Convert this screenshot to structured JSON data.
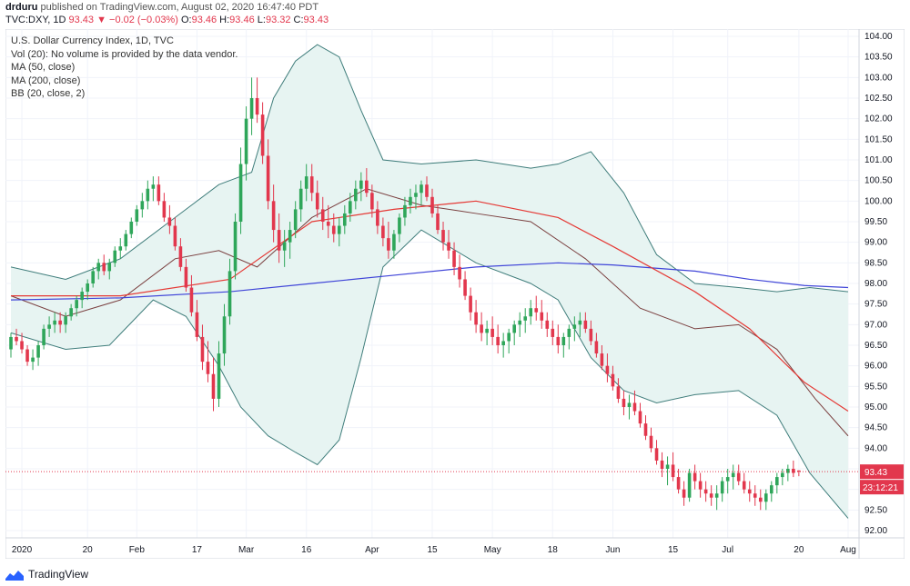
{
  "header": {
    "author": "drduru",
    "published_text": "published on TradingView.com, August 02, 2020 16:47:40 PDT",
    "symbol": "TVC:DXY, 1D",
    "last_price": "93.43",
    "change_arrow": "▼",
    "change": "−0.02 (−0.03%)",
    "ohlc": [
      {
        "label": "O:",
        "value": "93.46"
      },
      {
        "label": "H:",
        "value": "93.46"
      },
      {
        "label": "L:",
        "value": "93.32"
      },
      {
        "label": "C:",
        "value": "93.43"
      }
    ]
  },
  "legend": [
    "U.S. Dollar Currency Index, 1D, TVC",
    "Vol (20): No volume is provided by the data vendor.",
    "MA (50, close)",
    "MA (200, close)",
    "BB (20, close, 2)"
  ],
  "footer": {
    "brand": "TradingView"
  },
  "colors": {
    "up": "#26a69a",
    "up_candle": "#2fa65a",
    "down": "#e2374d",
    "ma50": "#e53935",
    "ma200": "#3f44d8",
    "bb_basis": "#7a3f3f",
    "bb_band": "#3f7d7b",
    "bb_fill": "#e7f4f2",
    "grid": "#f0f3fa"
  },
  "chart_data": {
    "type": "candlestick",
    "y_axis": {
      "min": 92.0,
      "max": 104.0,
      "ticks": [
        "104.00",
        "103.50",
        "103.00",
        "102.50",
        "102.00",
        "101.50",
        "101.00",
        "100.50",
        "100.00",
        "99.50",
        "99.00",
        "98.50",
        "98.00",
        "97.50",
        "97.00",
        "96.50",
        "96.00",
        "95.50",
        "95.00",
        "94.50",
        "94.00",
        "93.50",
        "93.00",
        "92.50",
        "92.00"
      ]
    },
    "x_axis": {
      "labels": [
        {
          "text": "2020",
          "day": 2
        },
        {
          "text": "20",
          "day": 14
        },
        {
          "text": "Feb",
          "day": 23
        },
        {
          "text": "17",
          "day": 34
        },
        {
          "text": "Mar",
          "day": 43
        },
        {
          "text": "16",
          "day": 54
        },
        {
          "text": "Apr",
          "day": 66
        },
        {
          "text": "15",
          "day": 77
        },
        {
          "text": "May",
          "day": 88
        },
        {
          "text": "18",
          "day": 99
        },
        {
          "text": "Jun",
          "day": 110
        },
        {
          "text": "15",
          "day": 121
        },
        {
          "text": "Jul",
          "day": 131
        },
        {
          "text": "20",
          "day": 144
        },
        {
          "text": "Aug",
          "day": 153
        }
      ],
      "day_min": -1,
      "day_max": 155
    },
    "price_label": {
      "value": 93.43,
      "text": "93.43"
    },
    "timer_label": {
      "value": 93.15,
      "text": "23:12:21"
    },
    "candles": [
      [
        96.4,
        96.8,
        96.2,
        96.7
      ],
      [
        96.7,
        96.9,
        96.5,
        96.6
      ],
      [
        96.6,
        96.8,
        96.3,
        96.4
      ],
      [
        96.4,
        96.5,
        96.0,
        96.1
      ],
      [
        96.1,
        96.4,
        95.9,
        96.2
      ],
      [
        96.2,
        96.6,
        96.0,
        96.5
      ],
      [
        96.5,
        97.0,
        96.4,
        96.9
      ],
      [
        96.9,
        97.2,
        96.7,
        97.0
      ],
      [
        97.0,
        97.3,
        96.8,
        97.1
      ],
      [
        97.1,
        97.3,
        96.8,
        97.0
      ],
      [
        97.0,
        97.3,
        96.8,
        97.2
      ],
      [
        97.2,
        97.5,
        97.1,
        97.4
      ],
      [
        97.4,
        97.7,
        97.2,
        97.6
      ],
      [
        97.6,
        97.9,
        97.4,
        97.8
      ],
      [
        97.8,
        98.1,
        97.6,
        98.0
      ],
      [
        98.0,
        98.4,
        97.9,
        98.3
      ],
      [
        98.3,
        98.6,
        98.1,
        98.5
      ],
      [
        98.5,
        98.7,
        98.2,
        98.3
      ],
      [
        98.3,
        98.6,
        98.1,
        98.5
      ],
      [
        98.5,
        98.9,
        98.4,
        98.8
      ],
      [
        98.8,
        99.1,
        98.6,
        98.9
      ],
      [
        98.9,
        99.3,
        98.8,
        99.2
      ],
      [
        99.2,
        99.6,
        99.1,
        99.5
      ],
      [
        99.5,
        99.9,
        99.4,
        99.8
      ],
      [
        99.8,
        100.2,
        99.6,
        100.0
      ],
      [
        100.0,
        100.5,
        99.8,
        100.3
      ],
      [
        100.3,
        100.6,
        100.0,
        100.4
      ],
      [
        100.4,
        100.6,
        99.9,
        100.0
      ],
      [
        100.0,
        100.2,
        99.5,
        99.6
      ],
      [
        99.6,
        99.9,
        99.2,
        99.4
      ],
      [
        99.4,
        99.6,
        98.8,
        98.9
      ],
      [
        98.9,
        99.1,
        98.3,
        98.4
      ],
      [
        98.4,
        98.6,
        97.8,
        97.9
      ],
      [
        97.9,
        98.2,
        97.2,
        97.3
      ],
      [
        97.3,
        97.6,
        96.6,
        96.7
      ],
      [
        96.7,
        97.0,
        95.9,
        96.1
      ],
      [
        96.1,
        96.6,
        95.6,
        95.8
      ],
      [
        95.8,
        96.2,
        94.9,
        95.2
      ],
      [
        95.2,
        96.6,
        95.0,
        96.3
      ],
      [
        96.3,
        97.5,
        96.0,
        97.2
      ],
      [
        97.2,
        98.6,
        97.0,
        98.3
      ],
      [
        98.3,
        99.7,
        98.1,
        99.5
      ],
      [
        99.5,
        101.3,
        99.2,
        100.9
      ],
      [
        100.9,
        102.3,
        100.5,
        102.0
      ],
      [
        102.0,
        103.0,
        101.6,
        102.5
      ],
      [
        102.5,
        103.0,
        101.9,
        102.1
      ],
      [
        102.1,
        102.4,
        100.9,
        101.1
      ],
      [
        101.1,
        101.5,
        99.8,
        100.0
      ],
      [
        100.0,
        100.4,
        99.0,
        99.3
      ],
      [
        99.3,
        99.7,
        98.5,
        98.8
      ],
      [
        98.8,
        99.3,
        98.4,
        99.0
      ],
      [
        99.0,
        99.5,
        98.6,
        99.3
      ],
      [
        99.3,
        100.0,
        99.1,
        99.8
      ],
      [
        99.8,
        100.5,
        99.5,
        100.3
      ],
      [
        100.3,
        100.9,
        100.0,
        100.6
      ],
      [
        100.6,
        100.9,
        100.0,
        100.2
      ],
      [
        100.2,
        100.5,
        99.6,
        99.8
      ],
      [
        99.8,
        100.1,
        99.3,
        99.5
      ],
      [
        99.5,
        99.9,
        99.1,
        99.4
      ],
      [
        99.4,
        99.7,
        99.0,
        99.2
      ],
      [
        99.2,
        99.6,
        98.9,
        99.4
      ],
      [
        99.4,
        99.9,
        99.2,
        99.7
      ],
      [
        99.7,
        100.2,
        99.5,
        100.0
      ],
      [
        100.0,
        100.5,
        99.8,
        100.3
      ],
      [
        100.3,
        100.7,
        100.0,
        100.5
      ],
      [
        100.5,
        100.8,
        100.1,
        100.2
      ],
      [
        100.2,
        100.4,
        99.6,
        99.8
      ],
      [
        99.8,
        100.0,
        99.2,
        99.4
      ],
      [
        99.4,
        99.6,
        98.9,
        99.1
      ],
      [
        99.1,
        99.5,
        98.6,
        98.8
      ],
      [
        98.8,
        99.3,
        98.6,
        99.2
      ],
      [
        99.2,
        99.7,
        99.0,
        99.6
      ],
      [
        99.6,
        100.1,
        99.4,
        99.9
      ],
      [
        99.9,
        100.3,
        99.7,
        100.1
      ],
      [
        100.1,
        100.4,
        99.8,
        100.2
      ],
      [
        100.2,
        100.5,
        99.9,
        100.4
      ],
      [
        100.4,
        100.6,
        100.0,
        100.1
      ],
      [
        100.1,
        100.3,
        99.6,
        99.7
      ],
      [
        99.7,
        99.9,
        99.2,
        99.3
      ],
      [
        99.3,
        99.5,
        98.8,
        99.0
      ],
      [
        99.0,
        99.3,
        98.6,
        98.8
      ],
      [
        98.8,
        99.0,
        98.2,
        98.4
      ],
      [
        98.4,
        98.7,
        97.9,
        98.1
      ],
      [
        98.1,
        98.3,
        97.6,
        97.7
      ],
      [
        97.7,
        97.9,
        97.1,
        97.3
      ],
      [
        97.3,
        97.6,
        96.8,
        97.0
      ],
      [
        97.0,
        97.3,
        96.6,
        96.8
      ],
      [
        96.8,
        97.1,
        96.5,
        96.9
      ],
      [
        96.9,
        97.2,
        96.5,
        96.7
      ],
      [
        96.7,
        97.0,
        96.3,
        96.5
      ],
      [
        96.5,
        96.8,
        96.2,
        96.6
      ],
      [
        96.6,
        96.9,
        96.3,
        96.8
      ],
      [
        96.8,
        97.1,
        96.5,
        97.0
      ],
      [
        97.0,
        97.3,
        96.7,
        97.1
      ],
      [
        97.1,
        97.4,
        96.8,
        97.2
      ],
      [
        97.2,
        97.6,
        97.0,
        97.4
      ],
      [
        97.4,
        97.7,
        97.1,
        97.3
      ],
      [
        97.3,
        97.6,
        96.9,
        97.1
      ],
      [
        97.1,
        97.3,
        96.7,
        96.9
      ],
      [
        96.9,
        97.1,
        96.5,
        96.7
      ],
      [
        96.7,
        97.0,
        96.3,
        96.5
      ],
      [
        96.5,
        96.8,
        96.2,
        96.7
      ],
      [
        96.7,
        97.0,
        96.4,
        96.9
      ],
      [
        96.9,
        97.2,
        96.6,
        97.0
      ],
      [
        97.0,
        97.3,
        96.7,
        97.1
      ],
      [
        97.1,
        97.3,
        96.8,
        96.9
      ],
      [
        96.9,
        97.1,
        96.5,
        96.6
      ],
      [
        96.6,
        96.8,
        96.2,
        96.3
      ],
      [
        96.3,
        96.5,
        95.9,
        96.0
      ],
      [
        96.0,
        96.3,
        95.6,
        95.8
      ],
      [
        95.8,
        96.0,
        95.4,
        95.5
      ],
      [
        95.5,
        95.7,
        95.1,
        95.2
      ],
      [
        95.2,
        95.4,
        94.8,
        95.0
      ],
      [
        95.0,
        95.3,
        94.7,
        95.1
      ],
      [
        95.1,
        95.4,
        94.8,
        94.9
      ],
      [
        94.9,
        95.1,
        94.5,
        94.6
      ],
      [
        94.6,
        94.8,
        94.2,
        94.3
      ],
      [
        94.3,
        94.5,
        93.9,
        94.0
      ],
      [
        94.0,
        94.2,
        93.6,
        93.7
      ],
      [
        93.7,
        93.9,
        93.3,
        93.5
      ],
      [
        93.5,
        93.8,
        93.1,
        93.6
      ],
      [
        93.6,
        93.9,
        93.2,
        93.3
      ],
      [
        93.3,
        93.5,
        92.9,
        93.0
      ],
      [
        93.0,
        93.2,
        92.6,
        92.8
      ],
      [
        92.8,
        93.5,
        92.7,
        93.4
      ],
      [
        93.4,
        93.6,
        93.0,
        93.2
      ],
      [
        93.2,
        93.4,
        92.8,
        93.0
      ],
      [
        93.0,
        93.2,
        92.7,
        92.9
      ],
      [
        92.9,
        93.1,
        92.6,
        92.8
      ],
      [
        92.8,
        93.1,
        92.5,
        92.9
      ],
      [
        92.9,
        93.3,
        92.7,
        93.2
      ],
      [
        93.2,
        93.5,
        92.9,
        93.3
      ],
      [
        93.3,
        93.6,
        93.0,
        93.4
      ],
      [
        93.4,
        93.6,
        93.1,
        93.2
      ],
      [
        93.2,
        93.4,
        92.9,
        93.0
      ],
      [
        93.0,
        93.2,
        92.7,
        92.9
      ],
      [
        92.9,
        93.1,
        92.6,
        92.8
      ],
      [
        92.8,
        93.0,
        92.5,
        92.7
      ],
      [
        92.7,
        93.0,
        92.5,
        92.9
      ],
      [
        92.9,
        93.2,
        92.7,
        93.1
      ],
      [
        93.1,
        93.4,
        92.9,
        93.3
      ],
      [
        93.3,
        93.5,
        93.1,
        93.4
      ],
      [
        93.4,
        93.6,
        93.2,
        93.5
      ],
      [
        93.5,
        93.7,
        93.3,
        93.4
      ],
      [
        93.46,
        93.46,
        93.32,
        93.43
      ]
    ],
    "ma50": [
      [
        0,
        97.7
      ],
      [
        20,
        97.7
      ],
      [
        40,
        98.1
      ],
      [
        55,
        99.5
      ],
      [
        70,
        99.8
      ],
      [
        85,
        100.0
      ],
      [
        100,
        99.6
      ],
      [
        110,
        98.9
      ],
      [
        125,
        97.8
      ],
      [
        135,
        96.9
      ],
      [
        145,
        95.6
      ],
      [
        153,
        94.9
      ]
    ],
    "ma200": [
      [
        0,
        97.6
      ],
      [
        20,
        97.65
      ],
      [
        40,
        97.8
      ],
      [
        55,
        98.0
      ],
      [
        70,
        98.2
      ],
      [
        85,
        98.4
      ],
      [
        100,
        98.5
      ],
      [
        110,
        98.45
      ],
      [
        125,
        98.3
      ],
      [
        135,
        98.1
      ],
      [
        145,
        97.95
      ],
      [
        153,
        97.9
      ]
    ],
    "bb_basis": [
      [
        0,
        97.7
      ],
      [
        10,
        97.2
      ],
      [
        20,
        97.6
      ],
      [
        30,
        98.6
      ],
      [
        38,
        98.8
      ],
      [
        45,
        98.4
      ],
      [
        55,
        99.6
      ],
      [
        65,
        100.3
      ],
      [
        75,
        99.9
      ],
      [
        85,
        99.7
      ],
      [
        95,
        99.5
      ],
      [
        105,
        98.6
      ],
      [
        115,
        97.4
      ],
      [
        125,
        96.9
      ],
      [
        133,
        97.0
      ],
      [
        140,
        96.4
      ],
      [
        147,
        95.2
      ],
      [
        153,
        94.3
      ]
    ],
    "bb_upper": [
      [
        0,
        98.4
      ],
      [
        10,
        98.1
      ],
      [
        20,
        98.6
      ],
      [
        28,
        99.4
      ],
      [
        32,
        99.8
      ],
      [
        38,
        100.4
      ],
      [
        44,
        100.7
      ],
      [
        48,
        102.5
      ],
      [
        52,
        103.4
      ],
      [
        56,
        103.8
      ],
      [
        60,
        103.5
      ],
      [
        64,
        102.2
      ],
      [
        68,
        101.0
      ],
      [
        75,
        100.9
      ],
      [
        85,
        101.0
      ],
      [
        95,
        100.8
      ],
      [
        100,
        100.9
      ],
      [
        106,
        101.2
      ],
      [
        112,
        100.2
      ],
      [
        118,
        98.7
      ],
      [
        125,
        98.0
      ],
      [
        133,
        97.9
      ],
      [
        140,
        97.8
      ],
      [
        146,
        97.9
      ],
      [
        153,
        97.8
      ]
    ],
    "bb_lower": [
      [
        0,
        96.8
      ],
      [
        10,
        96.4
      ],
      [
        18,
        96.5
      ],
      [
        26,
        97.6
      ],
      [
        32,
        97.2
      ],
      [
        38,
        96.0
      ],
      [
        42,
        95.0
      ],
      [
        47,
        94.3
      ],
      [
        52,
        93.9
      ],
      [
        56,
        93.6
      ],
      [
        60,
        94.2
      ],
      [
        64,
        96.2
      ],
      [
        68,
        98.4
      ],
      [
        75,
        99.3
      ],
      [
        85,
        98.5
      ],
      [
        95,
        98.0
      ],
      [
        100,
        97.6
      ],
      [
        106,
        96.2
      ],
      [
        112,
        95.4
      ],
      [
        118,
        95.1
      ],
      [
        125,
        95.3
      ],
      [
        133,
        95.4
      ],
      [
        140,
        94.8
      ],
      [
        146,
        93.4
      ],
      [
        153,
        92.3
      ]
    ]
  }
}
